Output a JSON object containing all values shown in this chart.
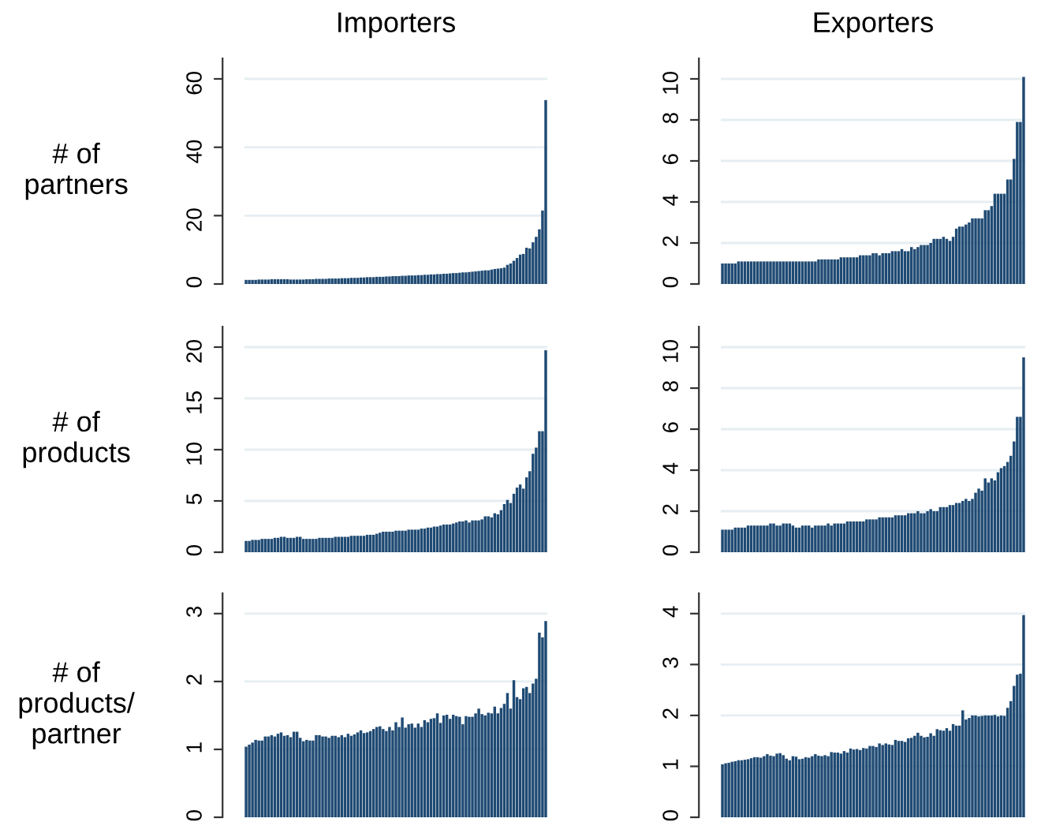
{
  "chart_data": [
    {
      "type": "bar",
      "title": "Importers",
      "ylabel": "# of\npartners",
      "color": "#1f4a73",
      "grid": "y",
      "ylim": [
        0,
        66
      ],
      "yticks": [
        0,
        20,
        40,
        60
      ],
      "categories": [
        null,
        null,
        null,
        null,
        null,
        null,
        null,
        null,
        null,
        null,
        null,
        null,
        null,
        null,
        null,
        null,
        null,
        null,
        null,
        null,
        null,
        null,
        null,
        null,
        null,
        null,
        null,
        null,
        null,
        null,
        null,
        null,
        null,
        null,
        null,
        null,
        null,
        null,
        null,
        null,
        null,
        null,
        null,
        null,
        null,
        null,
        null,
        null,
        null,
        null,
        null,
        null,
        null,
        null,
        null,
        null,
        null,
        null,
        null,
        null,
        null,
        null,
        null,
        null,
        null,
        null,
        null,
        null,
        null,
        null,
        null,
        null,
        null,
        null,
        null,
        null,
        null,
        null,
        null,
        null,
        null,
        null,
        null,
        null,
        null,
        null,
        null,
        null,
        null,
        null,
        null,
        null,
        null,
        null,
        null
      ],
      "values": [
        1.2,
        1.2,
        1.2,
        1.2,
        1.3,
        1.3,
        1.3,
        1.3,
        1.4,
        1.4,
        1.4,
        1.4,
        1.4,
        1.4,
        1.3,
        1.3,
        1.3,
        1.3,
        1.3,
        1.4,
        1.4,
        1.4,
        1.5,
        1.5,
        1.5,
        1.5,
        1.6,
        1.6,
        1.6,
        1.6,
        1.7,
        1.7,
        1.7,
        1.8,
        1.8,
        1.8,
        1.9,
        1.9,
        2.0,
        2.0,
        2.0,
        2.1,
        2.1,
        2.1,
        2.2,
        2.2,
        2.3,
        2.3,
        2.3,
        2.4,
        2.4,
        2.5,
        2.5,
        2.5,
        2.6,
        2.6,
        2.7,
        2.7,
        2.8,
        2.8,
        2.9,
        2.9,
        3.0,
        3.0,
        3.1,
        3.2,
        3.2,
        3.3,
        3.4,
        3.4,
        3.5,
        3.6,
        3.7,
        3.8,
        3.9,
        4.0,
        4.0,
        4.2,
        4.4,
        4.5,
        4.6,
        4.8,
        5.6,
        6.0,
        6.8,
        7.6,
        8.6,
        8.8,
        10.6,
        10.4,
        12.2,
        13.8,
        16.0,
        21.5,
        53.8
      ]
    },
    {
      "type": "bar",
      "title": "Exporters",
      "color": "#1f4a73",
      "grid": "y",
      "ylim": [
        0,
        11
      ],
      "yticks": [
        0,
        2,
        4,
        6,
        8,
        10
      ],
      "categories": [
        null,
        null,
        null,
        null,
        null,
        null,
        null,
        null,
        null,
        null,
        null,
        null,
        null,
        null,
        null,
        null,
        null,
        null,
        null,
        null,
        null,
        null,
        null,
        null,
        null,
        null,
        null,
        null,
        null,
        null,
        null,
        null,
        null,
        null,
        null,
        null,
        null,
        null,
        null,
        null,
        null,
        null,
        null,
        null,
        null,
        null,
        null,
        null,
        null,
        null,
        null,
        null,
        null,
        null,
        null,
        null,
        null,
        null,
        null,
        null,
        null,
        null,
        null,
        null,
        null,
        null,
        null,
        null,
        null,
        null,
        null,
        null,
        null,
        null,
        null,
        null,
        null,
        null,
        null,
        null,
        null,
        null,
        null,
        null,
        null,
        null,
        null,
        null,
        null,
        null,
        null,
        null,
        null,
        null,
        null
      ],
      "values": [
        1.0,
        1.0,
        1.0,
        1.0,
        1.0,
        1.1,
        1.1,
        1.1,
        1.1,
        1.1,
        1.1,
        1.1,
        1.1,
        1.1,
        1.1,
        1.1,
        1.1,
        1.1,
        1.1,
        1.1,
        1.1,
        1.1,
        1.1,
        1.1,
        1.1,
        1.1,
        1.1,
        1.1,
        1.1,
        1.1,
        1.2,
        1.2,
        1.2,
        1.2,
        1.2,
        1.2,
        1.2,
        1.3,
        1.3,
        1.3,
        1.3,
        1.3,
        1.3,
        1.4,
        1.4,
        1.4,
        1.4,
        1.5,
        1.5,
        1.4,
        1.5,
        1.5,
        1.5,
        1.6,
        1.6,
        1.6,
        1.7,
        1.6,
        1.6,
        1.8,
        1.7,
        1.8,
        1.9,
        1.9,
        1.9,
        2.0,
        2.2,
        2.2,
        2.2,
        2.3,
        2.2,
        2.1,
        2.3,
        2.7,
        2.8,
        2.8,
        2.9,
        3.0,
        3.2,
        3.2,
        3.2,
        3.2,
        3.6,
        3.6,
        3.8,
        4.4,
        4.4,
        4.4,
        4.4,
        5.1,
        5.1,
        6.1,
        7.9,
        7.9,
        10.1
      ]
    },
    {
      "type": "bar",
      "ylabel": "# of\nproducts",
      "color": "#1f4a73",
      "grid": "y",
      "ylim": [
        0,
        22
      ],
      "yticks": [
        0,
        5,
        10,
        15,
        20
      ],
      "categories": [
        null,
        null,
        null,
        null,
        null,
        null,
        null,
        null,
        null,
        null,
        null,
        null,
        null,
        null,
        null,
        null,
        null,
        null,
        null,
        null,
        null,
        null,
        null,
        null,
        null,
        null,
        null,
        null,
        null,
        null,
        null,
        null,
        null,
        null,
        null,
        null,
        null,
        null,
        null,
        null,
        null,
        null,
        null,
        null,
        null,
        null,
        null,
        null,
        null,
        null,
        null,
        null,
        null,
        null,
        null,
        null,
        null,
        null,
        null,
        null,
        null,
        null,
        null,
        null,
        null,
        null,
        null,
        null,
        null,
        null,
        null,
        null,
        null,
        null,
        null,
        null,
        null,
        null,
        null,
        null,
        null,
        null,
        null,
        null,
        null,
        null,
        null,
        null,
        null,
        null,
        null,
        null,
        null,
        null,
        null
      ],
      "values": [
        1.1,
        1.1,
        1.2,
        1.2,
        1.2,
        1.3,
        1.3,
        1.3,
        1.3,
        1.4,
        1.4,
        1.5,
        1.5,
        1.4,
        1.4,
        1.4,
        1.5,
        1.5,
        1.3,
        1.3,
        1.3,
        1.3,
        1.3,
        1.4,
        1.4,
        1.4,
        1.4,
        1.4,
        1.5,
        1.5,
        1.5,
        1.5,
        1.5,
        1.6,
        1.6,
        1.6,
        1.6,
        1.6,
        1.7,
        1.7,
        1.7,
        1.8,
        1.9,
        2.0,
        2.0,
        2.0,
        2.0,
        2.1,
        2.1,
        2.1,
        2.1,
        2.2,
        2.2,
        2.2,
        2.2,
        2.3,
        2.3,
        2.4,
        2.4,
        2.5,
        2.5,
        2.6,
        2.7,
        2.7,
        2.7,
        2.8,
        2.9,
        3.0,
        3.0,
        3.1,
        2.9,
        3.1,
        3.1,
        3.1,
        3.2,
        3.5,
        3.5,
        3.4,
        3.8,
        3.7,
        4.1,
        4.7,
        5.1,
        4.8,
        5.7,
        6.3,
        6.6,
        6.2,
        7.3,
        7.9,
        9.6,
        10.2,
        11.8,
        11.8,
        19.7
      ]
    },
    {
      "type": "bar",
      "color": "#1f4a73",
      "grid": "y",
      "ylim": [
        0,
        11
      ],
      "yticks": [
        0,
        2,
        4,
        6,
        8,
        10
      ],
      "categories": [
        null,
        null,
        null,
        null,
        null,
        null,
        null,
        null,
        null,
        null,
        null,
        null,
        null,
        null,
        null,
        null,
        null,
        null,
        null,
        null,
        null,
        null,
        null,
        null,
        null,
        null,
        null,
        null,
        null,
        null,
        null,
        null,
        null,
        null,
        null,
        null,
        null,
        null,
        null,
        null,
        null,
        null,
        null,
        null,
        null,
        null,
        null,
        null,
        null,
        null,
        null,
        null,
        null,
        null,
        null,
        null,
        null,
        null,
        null,
        null,
        null,
        null,
        null,
        null,
        null,
        null,
        null,
        null,
        null,
        null,
        null,
        null,
        null,
        null,
        null,
        null,
        null,
        null,
        null,
        null,
        null,
        null,
        null,
        null,
        null,
        null,
        null,
        null,
        null,
        null,
        null,
        null,
        null,
        null,
        null
      ],
      "values": [
        1.1,
        1.1,
        1.1,
        1.1,
        1.2,
        1.2,
        1.2,
        1.2,
        1.3,
        1.3,
        1.3,
        1.3,
        1.3,
        1.3,
        1.3,
        1.4,
        1.4,
        1.3,
        1.3,
        1.4,
        1.4,
        1.4,
        1.3,
        1.2,
        1.2,
        1.3,
        1.3,
        1.3,
        1.2,
        1.3,
        1.3,
        1.3,
        1.3,
        1.4,
        1.3,
        1.4,
        1.4,
        1.4,
        1.4,
        1.5,
        1.5,
        1.5,
        1.5,
        1.5,
        1.5,
        1.6,
        1.6,
        1.6,
        1.6,
        1.7,
        1.7,
        1.7,
        1.7,
        1.7,
        1.8,
        1.8,
        1.8,
        1.8,
        1.9,
        1.9,
        1.9,
        2.0,
        1.9,
        1.9,
        2.0,
        2.1,
        2.0,
        2.0,
        2.2,
        2.2,
        2.2,
        2.3,
        2.3,
        2.4,
        2.4,
        2.5,
        2.6,
        2.5,
        2.6,
        2.9,
        3.1,
        3.0,
        3.6,
        3.4,
        3.6,
        3.5,
        3.9,
        4.1,
        4.2,
        4.4,
        4.7,
        5.4,
        6.6,
        6.6,
        9.5
      ]
    },
    {
      "type": "bar",
      "ylabel": "# of\nproducts/\npartner",
      "color": "#1f4a73",
      "grid": "y",
      "ylim": [
        0,
        3.3
      ],
      "yticks": [
        0,
        1,
        2,
        3
      ],
      "categories": [
        null,
        null,
        null,
        null,
        null,
        null,
        null,
        null,
        null,
        null,
        null,
        null,
        null,
        null,
        null,
        null,
        null,
        null,
        null,
        null,
        null,
        null,
        null,
        null,
        null,
        null,
        null,
        null,
        null,
        null,
        null,
        null,
        null,
        null,
        null,
        null,
        null,
        null,
        null,
        null,
        null,
        null,
        null,
        null,
        null,
        null,
        null,
        null,
        null,
        null,
        null,
        null,
        null,
        null,
        null,
        null,
        null,
        null,
        null,
        null,
        null,
        null,
        null,
        null,
        null,
        null,
        null,
        null,
        null,
        null,
        null,
        null,
        null,
        null,
        null,
        null,
        null,
        null,
        null,
        null,
        null,
        null,
        null,
        null,
        null,
        null,
        null,
        null,
        null,
        null,
        null,
        null,
        null,
        null,
        null
      ],
      "values": [
        1.04,
        1.07,
        1.1,
        1.14,
        1.13,
        1.13,
        1.19,
        1.19,
        1.21,
        1.19,
        1.23,
        1.25,
        1.2,
        1.21,
        1.18,
        1.26,
        1.26,
        1.17,
        1.12,
        1.14,
        1.13,
        1.13,
        1.21,
        1.21,
        1.19,
        1.19,
        1.17,
        1.2,
        1.2,
        1.18,
        1.21,
        1.18,
        1.23,
        1.2,
        1.22,
        1.25,
        1.28,
        1.24,
        1.25,
        1.27,
        1.3,
        1.33,
        1.34,
        1.3,
        1.27,
        1.33,
        1.28,
        1.4,
        1.33,
        1.47,
        1.32,
        1.37,
        1.38,
        1.32,
        1.38,
        1.33,
        1.43,
        1.4,
        1.45,
        1.46,
        1.53,
        1.39,
        1.5,
        1.51,
        1.45,
        1.51,
        1.49,
        1.48,
        1.37,
        1.49,
        1.48,
        1.48,
        1.53,
        1.6,
        1.52,
        1.5,
        1.54,
        1.53,
        1.63,
        1.53,
        1.61,
        1.67,
        1.83,
        1.6,
        2.02,
        1.77,
        1.74,
        1.9,
        1.92,
        1.83,
        1.97,
        2.04,
        2.72,
        2.65,
        2.89
      ]
    },
    {
      "type": "bar",
      "color": "#1f4a73",
      "grid": "y",
      "ylim": [
        0,
        4.4
      ],
      "yticks": [
        0,
        1,
        2,
        3,
        4
      ],
      "categories": [
        null,
        null,
        null,
        null,
        null,
        null,
        null,
        null,
        null,
        null,
        null,
        null,
        null,
        null,
        null,
        null,
        null,
        null,
        null,
        null,
        null,
        null,
        null,
        null,
        null,
        null,
        null,
        null,
        null,
        null,
        null,
        null,
        null,
        null,
        null,
        null,
        null,
        null,
        null,
        null,
        null,
        null,
        null,
        null,
        null,
        null,
        null,
        null,
        null,
        null,
        null,
        null,
        null,
        null,
        null,
        null,
        null,
        null,
        null,
        null,
        null,
        null,
        null,
        null,
        null,
        null,
        null,
        null,
        null,
        null,
        null,
        null,
        null,
        null,
        null,
        null,
        null,
        null,
        null,
        null,
        null,
        null,
        null,
        null,
        null,
        null,
        null,
        null,
        null,
        null,
        null,
        null,
        null,
        null,
        null
      ],
      "values": [
        1.04,
        1.06,
        1.07,
        1.09,
        1.1,
        1.12,
        1.12,
        1.13,
        1.14,
        1.16,
        1.18,
        1.18,
        1.17,
        1.2,
        1.24,
        1.21,
        1.2,
        1.25,
        1.26,
        1.22,
        1.15,
        1.12,
        1.2,
        1.19,
        1.14,
        1.15,
        1.18,
        1.17,
        1.2,
        1.24,
        1.21,
        1.2,
        1.22,
        1.2,
        1.28,
        1.27,
        1.27,
        1.25,
        1.3,
        1.27,
        1.35,
        1.33,
        1.34,
        1.32,
        1.36,
        1.35,
        1.4,
        1.4,
        1.38,
        1.45,
        1.42,
        1.45,
        1.43,
        1.42,
        1.52,
        1.5,
        1.5,
        1.48,
        1.55,
        1.56,
        1.6,
        1.66,
        1.6,
        1.57,
        1.58,
        1.65,
        1.6,
        1.73,
        1.71,
        1.7,
        1.75,
        1.7,
        1.83,
        1.8,
        1.8,
        2.1,
        1.92,
        1.95,
        2.0,
        2.0,
        1.98,
        1.99,
        2.0,
        2.0,
        2.0,
        2.01,
        1.98,
        2.0,
        1.99,
        2.15,
        2.28,
        2.58,
        2.8,
        2.82,
        3.97
      ]
    }
  ]
}
